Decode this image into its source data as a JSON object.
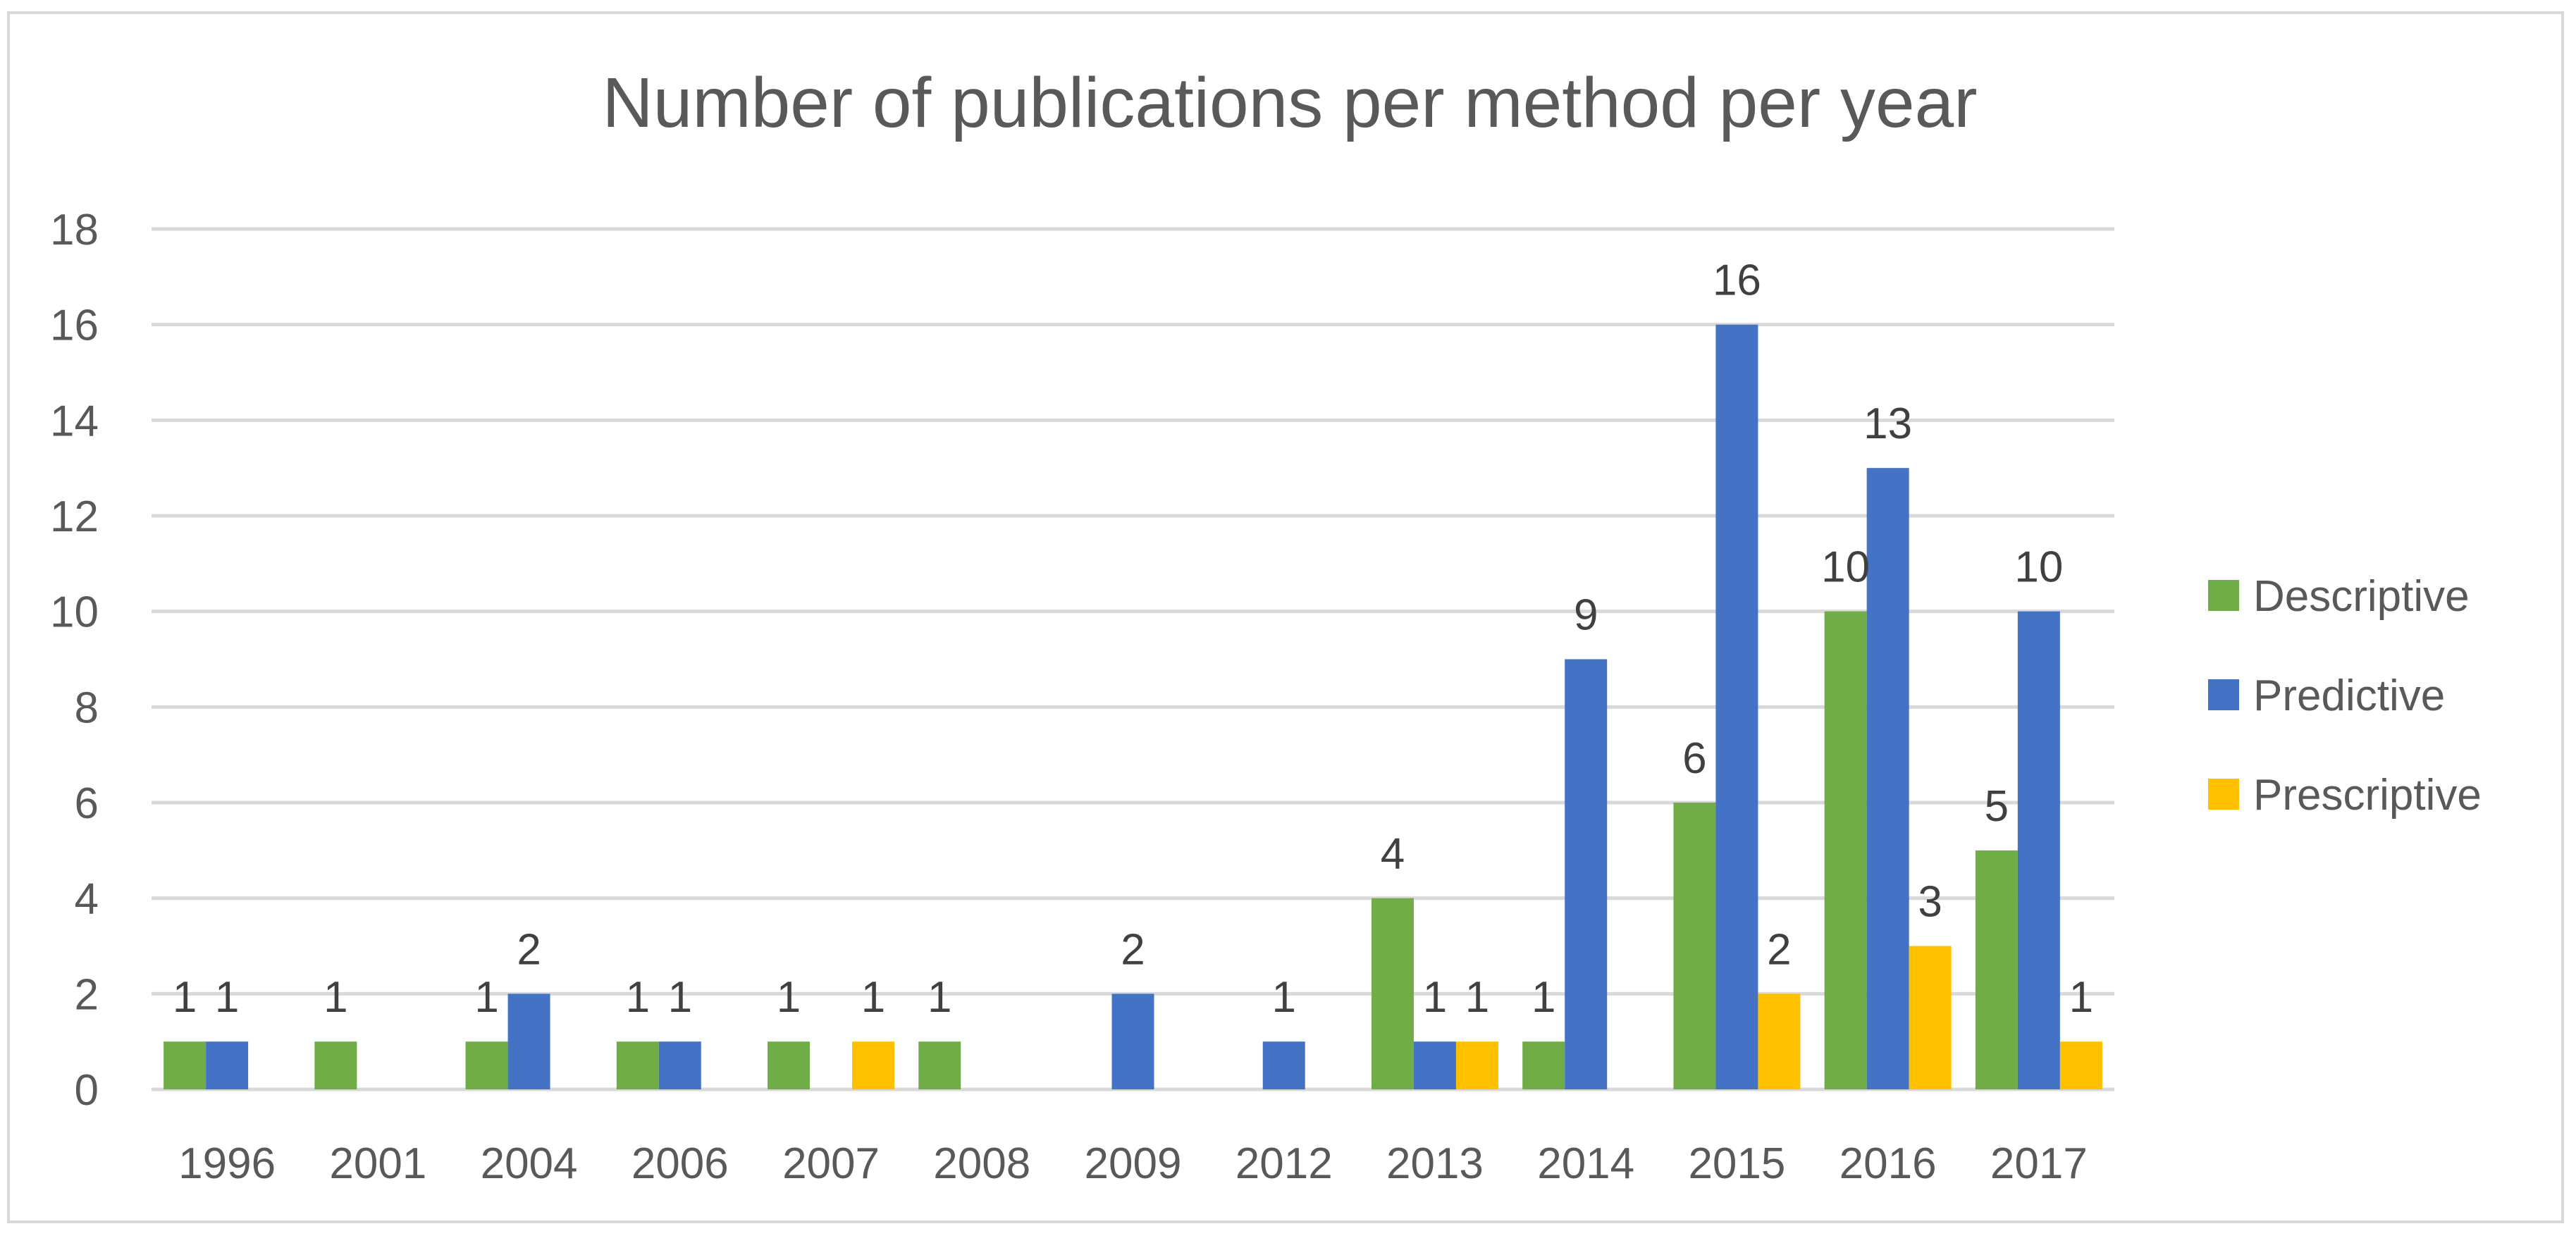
{
  "chart_data": {
    "type": "bar",
    "title": "Number of publications per method per year",
    "xlabel": "",
    "ylabel": "",
    "ylim": [
      0,
      18
    ],
    "yticks": [
      0,
      2,
      4,
      6,
      8,
      10,
      12,
      14,
      16,
      18
    ],
    "grid": true,
    "legend_position": "right",
    "categories": [
      "1996",
      "2001",
      "2004",
      "2006",
      "2007",
      "2008",
      "2009",
      "2012",
      "2013",
      "2014",
      "2015",
      "2016",
      "2017"
    ],
    "series": [
      {
        "name": "Descriptive",
        "color": "#70ad47",
        "values": [
          1,
          1,
          1,
          1,
          1,
          1,
          null,
          null,
          4,
          1,
          6,
          10,
          5
        ]
      },
      {
        "name": "Predictive",
        "color": "#4472c4",
        "values": [
          1,
          null,
          2,
          1,
          null,
          null,
          2,
          1,
          1,
          9,
          16,
          13,
          10
        ]
      },
      {
        "name": "Prescriptive",
        "color": "#ffc000",
        "values": [
          null,
          null,
          null,
          null,
          1,
          null,
          null,
          null,
          1,
          null,
          2,
          3,
          1
        ]
      }
    ]
  },
  "colors": {
    "gridline": "#d9d9d9",
    "text": "#595959",
    "label": "#404040",
    "title": "#595959"
  }
}
